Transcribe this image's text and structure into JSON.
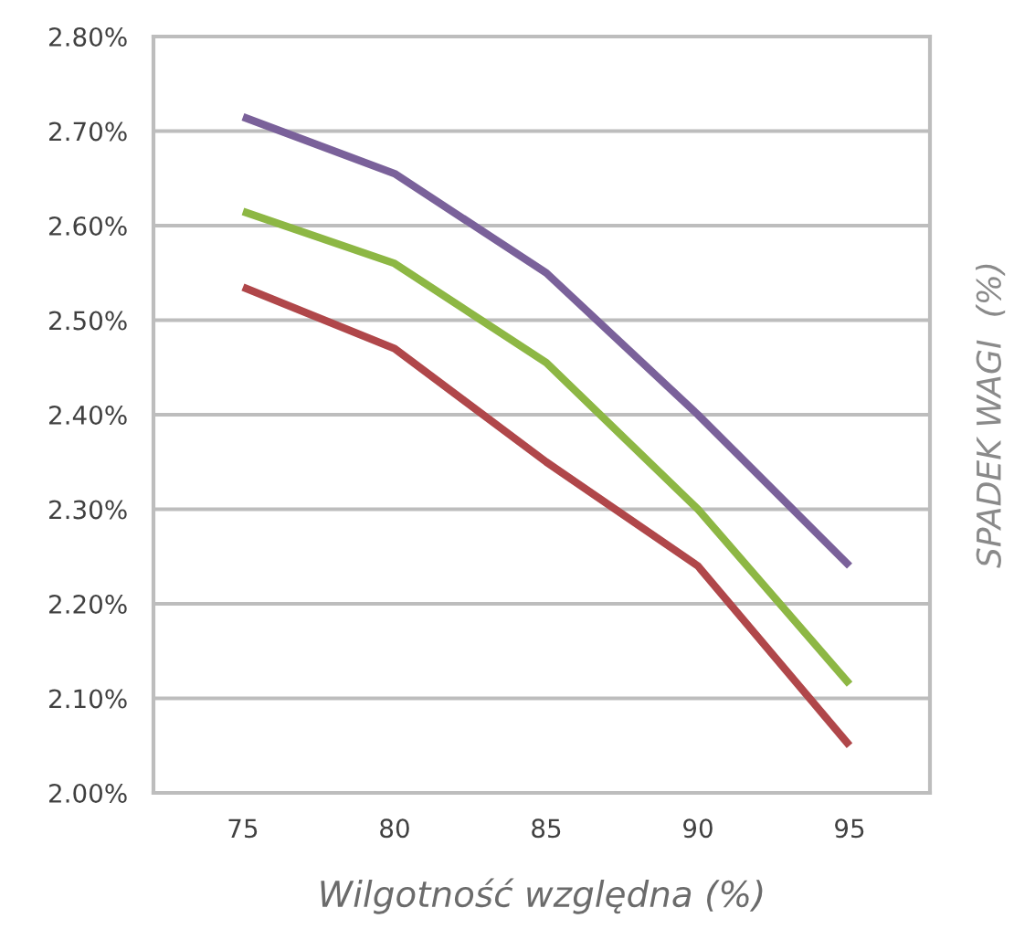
{
  "chart_data": {
    "type": "line",
    "xlabel": "Wilgotność względna (%)",
    "ylabel": "SPADEK WAGI  (%)",
    "categories": [
      "75",
      "80",
      "85",
      "90",
      "95"
    ],
    "series": [
      {
        "color": "#7a619a",
        "values": [
          2.715,
          2.655,
          2.55,
          2.4,
          2.24
        ]
      },
      {
        "color": "#8db744",
        "values": [
          2.615,
          2.56,
          2.455,
          2.3,
          2.115
        ]
      },
      {
        "color": "#b0474a",
        "values": [
          2.535,
          2.47,
          2.35,
          2.24,
          2.05
        ]
      }
    ],
    "ylim": [
      2.0,
      2.8
    ],
    "yticks": [
      {
        "value": 2.0,
        "label": "2.00%"
      },
      {
        "value": 2.1,
        "label": "2.10%"
      },
      {
        "value": 2.2,
        "label": "2.20%"
      },
      {
        "value": 2.3,
        "label": "2.30%"
      },
      {
        "value": 2.4,
        "label": "2.40%"
      },
      {
        "value": 2.5,
        "label": "2.50%"
      },
      {
        "value": 2.6,
        "label": "2.60%"
      },
      {
        "value": 2.7,
        "label": "2.70%"
      },
      {
        "value": 2.8,
        "label": "2.80%"
      }
    ],
    "grid": "y",
    "marker": "none",
    "line_style": "solid"
  }
}
